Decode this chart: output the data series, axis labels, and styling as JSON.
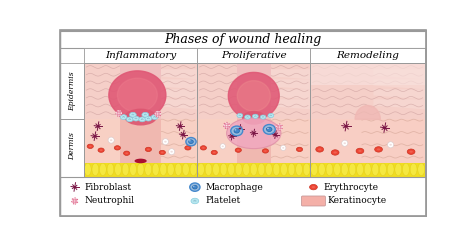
{
  "title": "Phases of wound healing",
  "phases": [
    "Inflammatory",
    "Proliferative",
    "Remodeling"
  ],
  "side_labels": [
    "Epidermis",
    "Dermis"
  ],
  "bg_color": "#ffffff",
  "border_color": "#999999",
  "epi_top_color": "#f5cfc8",
  "epi_bottom_color": "#f0b8b0",
  "dermis_color": "#f8d8d0",
  "dermis_lower_color": "#f5c8be",
  "fat_color": "#f0e030",
  "fat_bump_color": "#f5e840",
  "wound_dark": "#d04060",
  "wound_mid": "#e06880",
  "wound_light": "#f09090",
  "gran_color": "#f0a0b8",
  "fibro_color": "#7a1545",
  "neutro_color": "#cc5577",
  "macro_outer": "#99bbdd",
  "macro_inner": "#4488cc",
  "platelet_color": "#b8e8f0",
  "erythro_color": "#ee4433",
  "kera_color": "#f4b0a8",
  "title_fontsize": 9,
  "label_fontsize": 7.5,
  "side_fontsize": 5.5,
  "legend_fontsize": 6.5
}
